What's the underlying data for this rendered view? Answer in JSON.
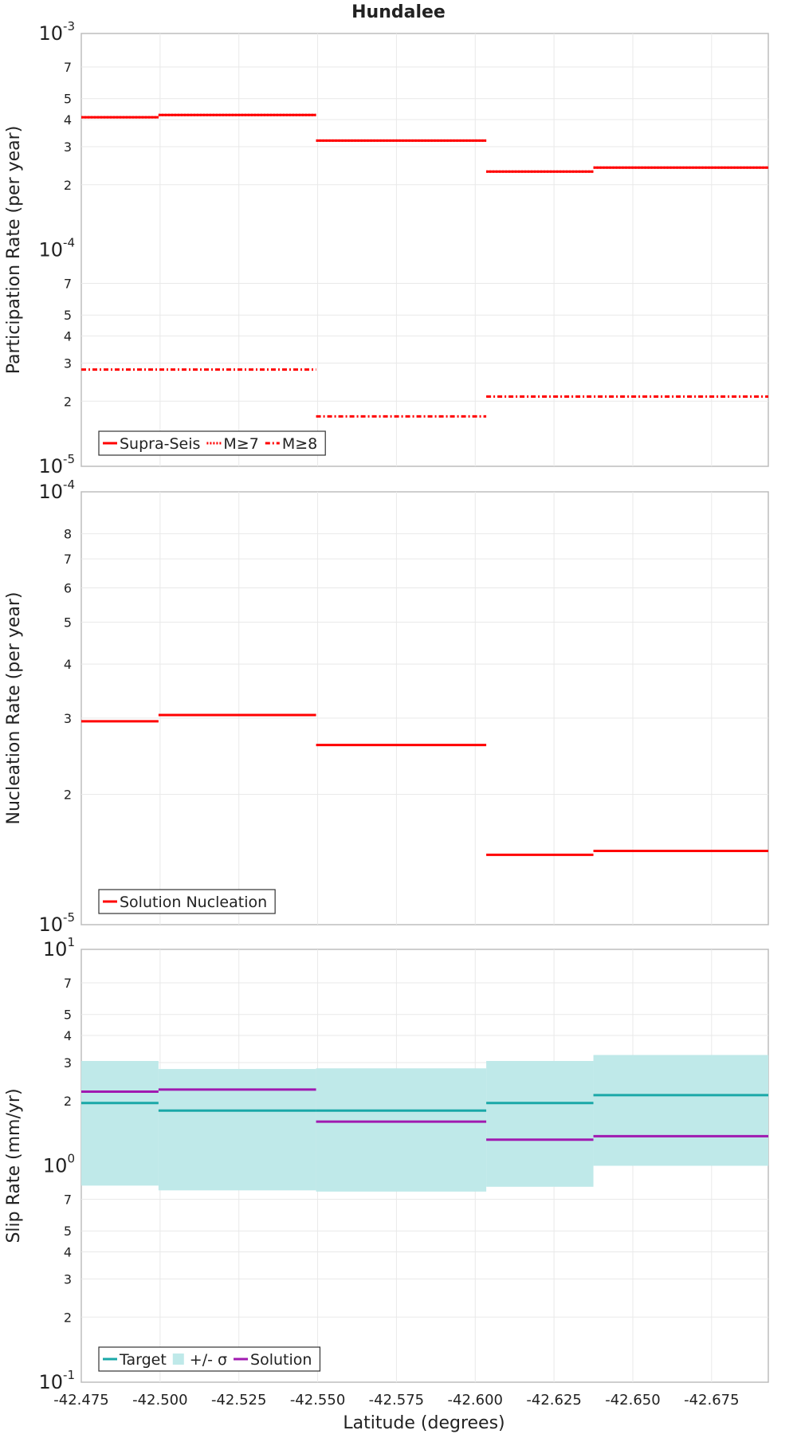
{
  "chart_data": [
    {
      "type": "line",
      "step": true,
      "title": "Hundalee",
      "ylabel": "Participation Rate (per year)",
      "xlabel": "",
      "yscale": "log",
      "ylim": [
        1e-05,
        0.001
      ],
      "xlim": [
        -42.475,
        -42.693
      ],
      "grid": true,
      "legend_position": "bottom-left",
      "y_decade_labels": [
        {
          "value": 1e-05,
          "base": "10",
          "exp": "-5"
        },
        {
          "value": 0.0001,
          "base": "10",
          "exp": "-4"
        },
        {
          "value": 0.001,
          "base": "10",
          "exp": "-3"
        }
      ],
      "y_minor_ticks": [
        2e-05,
        3e-05,
        4e-05,
        5e-05,
        7e-05,
        0.0002,
        0.0003,
        0.0004,
        0.0005,
        0.0007
      ],
      "y_minor_labels": [
        "2",
        "3",
        "4",
        "5",
        "7",
        "2",
        "3",
        "4",
        "5",
        "7"
      ],
      "series": [
        {
          "name": "Supra-Seis",
          "color": "#ff0000",
          "style": "solid",
          "segments": [
            [
              -42.475,
              -42.4995,
              0.00041
            ],
            [
              -42.4995,
              -42.5495,
              0.00042
            ],
            [
              -42.5495,
              -42.6035,
              0.00032
            ],
            [
              -42.6035,
              -42.6375,
              0.00023
            ],
            [
              -42.6375,
              -42.693,
              0.00024
            ]
          ]
        },
        {
          "name": "M≥7",
          "color": "#ff0000",
          "style": "dotted",
          "segments": [
            [
              -42.475,
              -42.4995,
              0.00041
            ],
            [
              -42.4995,
              -42.5495,
              0.00042
            ],
            [
              -42.5495,
              -42.6035,
              0.00032
            ],
            [
              -42.6035,
              -42.6375,
              0.00023
            ],
            [
              -42.6375,
              -42.693,
              0.00024
            ]
          ]
        },
        {
          "name": "M≥8",
          "color": "#ff0000",
          "style": "dashdot",
          "segments": [
            [
              -42.475,
              -42.5495,
              2.8e-05
            ],
            [
              -42.5495,
              -42.6035,
              1.7e-05
            ],
            [
              -42.6035,
              -42.693,
              2.1e-05
            ]
          ]
        }
      ]
    },
    {
      "type": "line",
      "step": true,
      "title": "",
      "ylabel": "Nucleation Rate (per year)",
      "xlabel": "",
      "yscale": "log",
      "ylim": [
        1e-05,
        0.0001
      ],
      "xlim": [
        -42.475,
        -42.693
      ],
      "grid": true,
      "legend_position": "bottom-left",
      "y_decade_labels": [
        {
          "value": 1e-05,
          "base": "10",
          "exp": "-5"
        },
        {
          "value": 0.0001,
          "base": "10",
          "exp": "-4"
        }
      ],
      "y_minor_ticks": [
        2e-05,
        3e-05,
        4e-05,
        5e-05,
        6e-05,
        7e-05,
        8e-05
      ],
      "y_minor_labels": [
        "2",
        "3",
        "4",
        "5",
        "6",
        "7",
        "8"
      ],
      "series": [
        {
          "name": "Solution Nucleation",
          "color": "#ff0000",
          "style": "solid",
          "segments": [
            [
              -42.475,
              -42.4995,
              2.95e-05
            ],
            [
              -42.4995,
              -42.5495,
              3.05e-05
            ],
            [
              -42.5495,
              -42.6035,
              2.6e-05
            ],
            [
              -42.6035,
              -42.6375,
              1.45e-05
            ],
            [
              -42.6375,
              -42.693,
              1.48e-05
            ]
          ]
        }
      ]
    },
    {
      "type": "line",
      "step": true,
      "title": "",
      "ylabel": "Slip Rate (mm/yr)",
      "xlabel": "Latitude (degrees)",
      "yscale": "log",
      "ylim": [
        0.1,
        10
      ],
      "xlim": [
        -42.475,
        -42.693
      ],
      "grid": true,
      "legend_position": "bottom-left",
      "y_decade_labels": [
        {
          "value": 0.1,
          "base": "10",
          "exp": "-1"
        },
        {
          "value": 1,
          "base": "10",
          "exp": "0"
        },
        {
          "value": 10,
          "base": "10",
          "exp": "1"
        }
      ],
      "y_minor_ticks": [
        0.2,
        0.3,
        0.4,
        0.5,
        0.7,
        2,
        3,
        4,
        5,
        7
      ],
      "y_minor_labels": [
        "2",
        "3",
        "4",
        "5",
        "7",
        "2",
        "3",
        "4",
        "5",
        "7"
      ],
      "x_ticks": [
        -42.475,
        -42.5,
        -42.525,
        -42.55,
        -42.575,
        -42.6,
        -42.625,
        -42.65,
        -42.675
      ],
      "x_tick_labels": [
        "-42.475",
        "-42.500",
        "-42.525",
        "-42.550",
        "-42.575",
        "-42.600",
        "-42.625",
        "-42.650",
        "-42.675"
      ],
      "bands": [
        {
          "name": "+/- σ",
          "color": "#bfe9e9",
          "segments": [
            [
              -42.475,
              -42.4995,
              0.81,
              3.05
            ],
            [
              -42.4995,
              -42.5495,
              0.77,
              2.8
            ],
            [
              -42.5495,
              -42.6035,
              0.76,
              2.82
            ],
            [
              -42.6035,
              -42.6375,
              0.8,
              3.05
            ],
            [
              -42.6375,
              -42.693,
              1.0,
              3.25
            ]
          ]
        }
      ],
      "series": [
        {
          "name": "Target",
          "color": "#1aa8a8",
          "style": "solid",
          "segments": [
            [
              -42.475,
              -42.4995,
              1.95
            ],
            [
              -42.4995,
              -42.5495,
              1.8
            ],
            [
              -42.5495,
              -42.6035,
              1.8
            ],
            [
              -42.6035,
              -42.6375,
              1.95
            ],
            [
              -42.6375,
              -42.693,
              2.12
            ]
          ]
        },
        {
          "name": "Solution",
          "color": "#a01ab0",
          "style": "solid",
          "segments": [
            [
              -42.475,
              -42.4995,
              2.2
            ],
            [
              -42.4995,
              -42.5495,
              2.25
            ],
            [
              -42.5495,
              -42.6035,
              1.6
            ],
            [
              -42.6035,
              -42.6375,
              1.32
            ],
            [
              -42.6375,
              -42.693,
              1.37
            ]
          ]
        }
      ],
      "legend_order": [
        "Target",
        "+/- σ",
        "Solution"
      ]
    }
  ]
}
